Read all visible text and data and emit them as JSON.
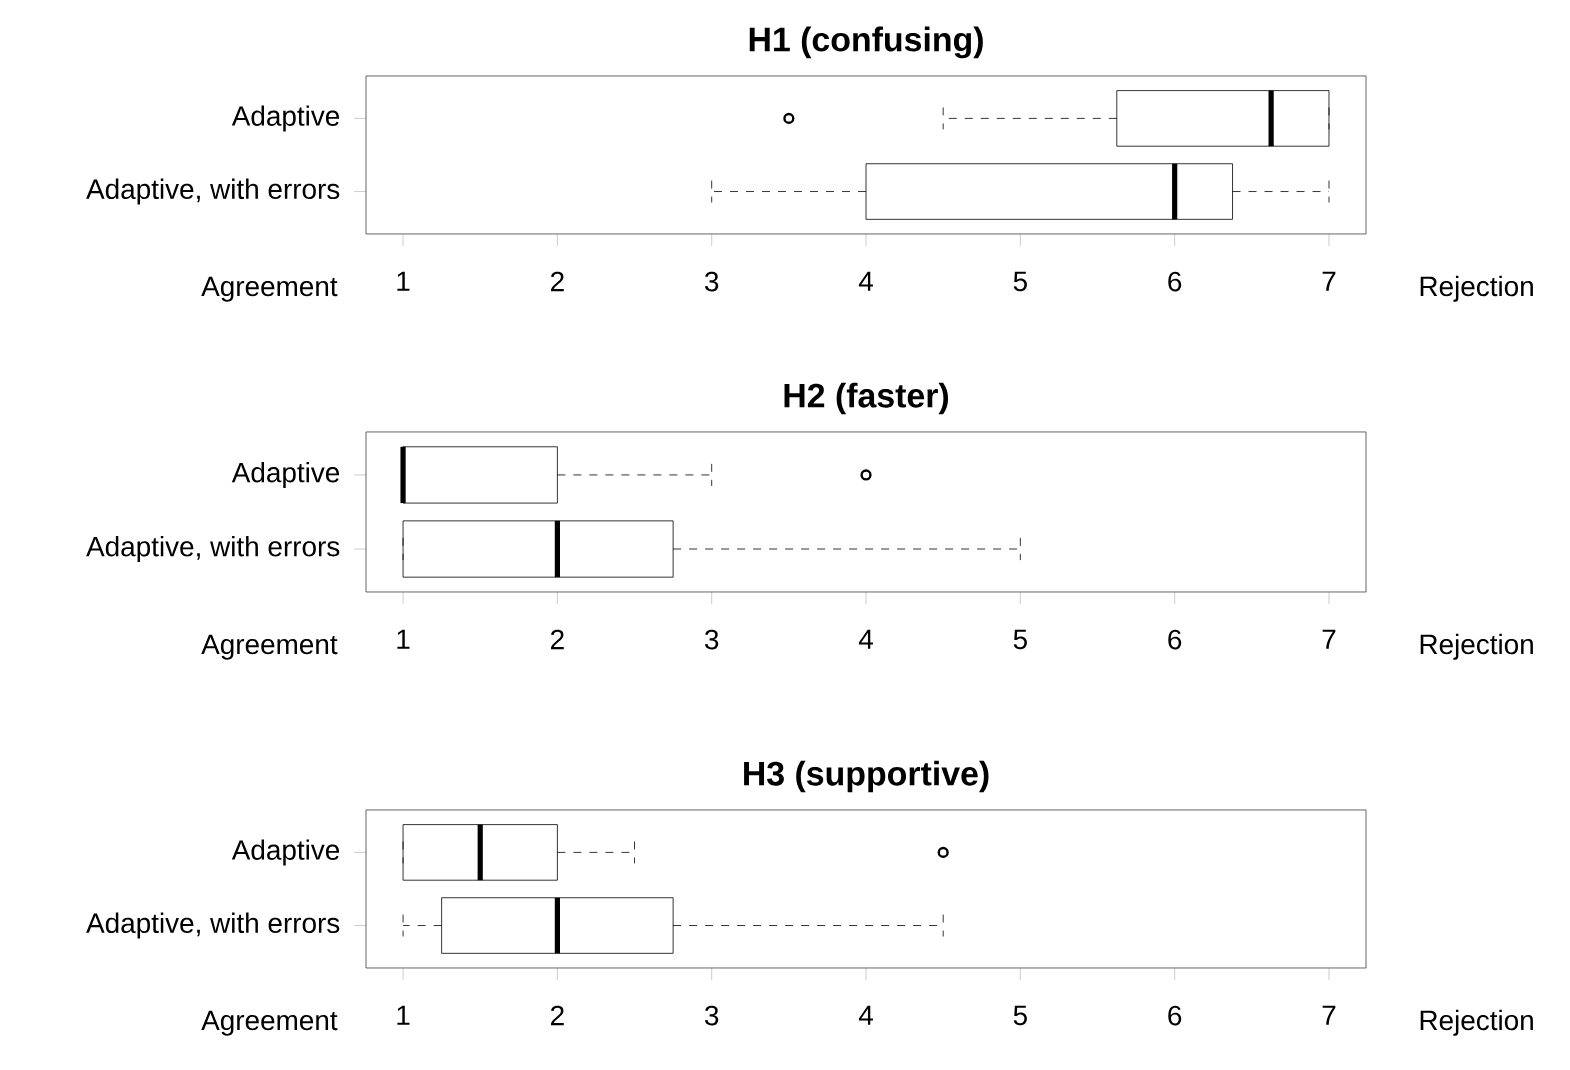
{
  "chart_data": [
    {
      "type": "box",
      "orientation": "horizontal",
      "title": "H1 (confusing)",
      "categories": [
        "Adaptive",
        "Adaptive, with errors"
      ],
      "color": "#000000",
      "boxes": [
        {
          "low": 4.5,
          "q1": 5.625,
          "median": 6.625,
          "q3": 7,
          "high": 7,
          "outliers": [
            3.5
          ]
        },
        {
          "low": 3,
          "q1": 4,
          "median": 6,
          "q3": 6.375,
          "high": 7
        }
      ],
      "xlim": [
        0.76,
        7.24
      ],
      "xticks": [
        1,
        2,
        3,
        4,
        5,
        6,
        7
      ],
      "annotations": [
        "Agreement",
        "Rejection"
      ]
    },
    {
      "type": "box",
      "orientation": "horizontal",
      "title": "H2 (faster)",
      "categories": [
        "Adaptive",
        "Adaptive, with errors"
      ],
      "color": "#000000",
      "boxes": [
        {
          "low": 1,
          "q1": 1,
          "median": 1,
          "q3": 2,
          "high": 3,
          "outliers": [
            4
          ]
        },
        {
          "low": 1,
          "q1": 1,
          "median": 2,
          "q3": 2.75,
          "high": 5
        }
      ],
      "xlim": [
        0.76,
        7.24
      ],
      "xticks": [
        1,
        2,
        3,
        4,
        5,
        6,
        7
      ],
      "annotations": [
        "Agreement",
        "Rejection"
      ]
    },
    {
      "type": "box",
      "orientation": "horizontal",
      "title": "H3 (supportive)",
      "categories": [
        "Adaptive",
        "Adaptive, with errors"
      ],
      "color": "#000000",
      "boxes": [
        {
          "low": 1,
          "q1": 1,
          "median": 1.5,
          "q3": 2,
          "high": 2.5,
          "outliers": [
            4.5
          ]
        },
        {
          "low": 1,
          "q1": 1.25,
          "median": 2,
          "q3": 2.75,
          "high": 4.5
        }
      ],
      "xlim": [
        0.76,
        7.24
      ],
      "xticks": [
        1,
        2,
        3,
        4,
        5,
        6,
        7
      ],
      "annotations": [
        "Agreement",
        "Rejection"
      ]
    }
  ]
}
